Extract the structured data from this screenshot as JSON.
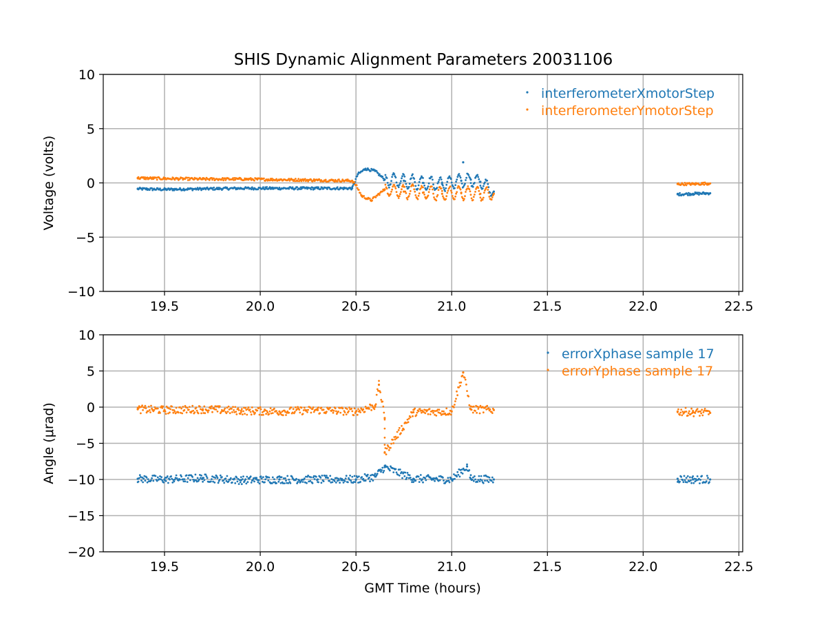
{
  "title": "SHIS Dynamic Alignment Parameters 20031106",
  "colors": {
    "series1": "#1f77b4",
    "series2": "#ff7f0e",
    "grid": "#b0b0b0"
  },
  "chart_data": [
    {
      "type": "scatter",
      "title": "SHIS Dynamic Alignment Parameters 20031106",
      "xlabel": "",
      "ylabel": "Voltage (volts)",
      "xlim": [
        19.18,
        22.52
      ],
      "ylim": [
        -10,
        10
      ],
      "xticks": [
        "19.5",
        "20.0",
        "20.5",
        "21.0",
        "21.5",
        "22.0",
        "22.5"
      ],
      "yticks": [
        "10",
        "5",
        "0",
        "−5",
        "−10"
      ],
      "grid": true,
      "legend_position": "top-right",
      "series": [
        {
          "name": "interferometerXmotorStep",
          "color": "#1f77b4",
          "points": [
            [
              19.36,
              -0.55
            ],
            [
              19.5,
              -0.6
            ],
            [
              19.7,
              -0.55
            ],
            [
              19.9,
              -0.5
            ],
            [
              20.1,
              -0.5
            ],
            [
              20.3,
              -0.5
            ],
            [
              20.48,
              -0.5
            ],
            [
              20.51,
              0.8
            ],
            [
              20.55,
              1.3
            ],
            [
              20.6,
              1.1
            ],
            [
              20.65,
              0.3
            ],
            [
              20.75,
              0.2
            ],
            [
              20.85,
              0.0
            ],
            [
              20.95,
              -0.1
            ],
            [
              21.05,
              0.2
            ],
            [
              21.1,
              0.3
            ],
            [
              21.15,
              0.1
            ],
            [
              21.22,
              -0.8
            ],
            [
              21.06,
              1.9
            ],
            [
              22.18,
              -1.05
            ],
            [
              22.26,
              -1.0
            ],
            [
              22.35,
              -0.95
            ]
          ]
        },
        {
          "name": "interferometerYmotorStep",
          "color": "#ff7f0e",
          "points": [
            [
              19.36,
              0.45
            ],
            [
              19.5,
              0.4
            ],
            [
              19.7,
              0.35
            ],
            [
              19.9,
              0.35
            ],
            [
              20.1,
              0.3
            ],
            [
              20.3,
              0.25
            ],
            [
              20.48,
              0.2
            ],
            [
              20.5,
              -0.2
            ],
            [
              20.53,
              -1.2
            ],
            [
              20.58,
              -1.6
            ],
            [
              20.65,
              -0.6
            ],
            [
              20.75,
              -0.8
            ],
            [
              20.85,
              -0.9
            ],
            [
              20.95,
              -1.0
            ],
            [
              21.05,
              -0.9
            ],
            [
              21.15,
              -1.0
            ],
            [
              21.22,
              -1.0
            ],
            [
              22.18,
              -0.1
            ],
            [
              22.26,
              -0.1
            ],
            [
              22.35,
              -0.05
            ]
          ]
        }
      ]
    },
    {
      "type": "scatter",
      "title": "",
      "xlabel": "GMT Time (hours)",
      "ylabel": "Angle (μrad)",
      "xlim": [
        19.18,
        22.52
      ],
      "ylim": [
        -20,
        10
      ],
      "xticks": [
        "19.5",
        "20.0",
        "20.5",
        "21.0",
        "21.5",
        "22.0",
        "22.5"
      ],
      "yticks": [
        "10",
        "5",
        "0",
        "−5",
        "−10",
        "−15",
        "−20"
      ],
      "grid": true,
      "legend_position": "top-right",
      "series": [
        {
          "name": "errorXphase sample 17",
          "color": "#1f77b4",
          "points": [
            [
              19.36,
              -9.9
            ],
            [
              19.5,
              -10.0
            ],
            [
              19.7,
              -9.8
            ],
            [
              19.9,
              -10.1
            ],
            [
              20.1,
              -10.0
            ],
            [
              20.3,
              -10.0
            ],
            [
              20.5,
              -10.0
            ],
            [
              20.6,
              -9.6
            ],
            [
              20.8,
              -9.9
            ],
            [
              21.0,
              -10.0
            ],
            [
              21.1,
              -9.9
            ],
            [
              21.22,
              -10.0
            ],
            [
              20.65,
              -8.3
            ],
            [
              21.08,
              -8.2
            ],
            [
              22.18,
              -9.9
            ],
            [
              22.26,
              -10.0
            ],
            [
              22.35,
              -10.0
            ]
          ]
        },
        {
          "name": "errorYphase sample 17",
          "color": "#ff7f0e",
          "points": [
            [
              19.36,
              -0.3
            ],
            [
              19.5,
              -0.4
            ],
            [
              19.7,
              -0.3
            ],
            [
              19.9,
              -0.5
            ],
            [
              20.1,
              -0.6
            ],
            [
              20.3,
              -0.4
            ],
            [
              20.5,
              -0.6
            ],
            [
              20.6,
              0.2
            ],
            [
              20.65,
              -1.5
            ],
            [
              20.8,
              -0.7
            ],
            [
              21.0,
              -0.6
            ],
            [
              21.1,
              -0.3
            ],
            [
              21.22,
              -0.4
            ],
            [
              20.62,
              3.1
            ],
            [
              21.06,
              4.8
            ],
            [
              20.65,
              -6.3
            ],
            [
              22.18,
              -0.6
            ],
            [
              22.26,
              -0.7
            ],
            [
              22.35,
              -0.8
            ]
          ]
        }
      ]
    }
  ]
}
